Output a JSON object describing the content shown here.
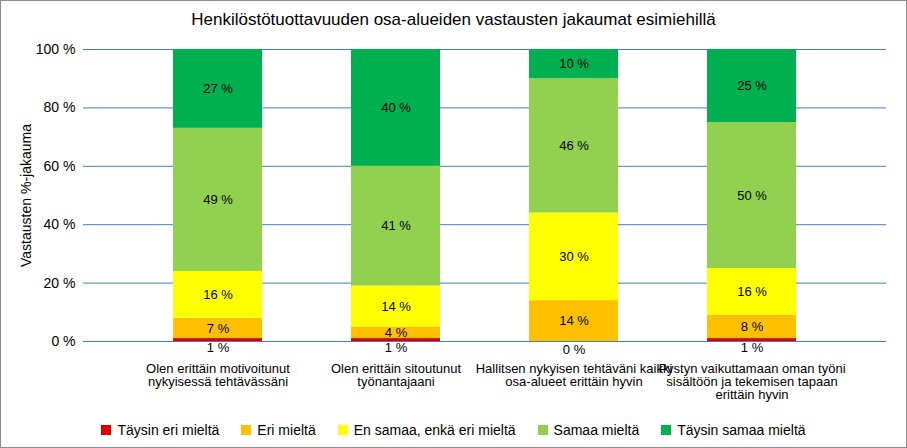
{
  "chart_data": {
    "type": "bar",
    "title": "Henkilöstötuottavuuden osa-alueiden vastausten jakaumat esimiehillä",
    "ylabel": "Vastausten %-jakauma",
    "categories": [
      "Olen erittäin motivoitunut nykyisessä tehtävässäni",
      "Olen erittäin sitoutunut työnantajaani",
      "Hallitsen nykyisen tehtäväni kaikki osa-alueet erittäin hyvin",
      "Pystyn vaikuttamaan oman työni sisältöön ja tekemisen tapaan erittäin hyvin"
    ],
    "series": [
      {
        "name": "Täysin eri mieltä",
        "color": "#e00000",
        "values": [
          1,
          1,
          0,
          1
        ],
        "value_labels": [
          "1 %",
          "1 %",
          "0 %",
          "1 %"
        ]
      },
      {
        "name": "Eri mieltä",
        "color": "#ffc000",
        "values": [
          7,
          4,
          14,
          8
        ],
        "value_labels": [
          "7 %",
          "4 %",
          "14 %",
          "8 %"
        ]
      },
      {
        "name": "En samaa, enkä eri mieltä",
        "color": "#ffff00",
        "values": [
          16,
          14,
          30,
          16
        ],
        "value_labels": [
          "16 %",
          "14 %",
          "30 %",
          "16 %"
        ]
      },
      {
        "name": "Samaa mieltä",
        "color": "#92d050",
        "values": [
          49,
          41,
          46,
          50
        ],
        "value_labels": [
          "49 %",
          "41 %",
          "46 %",
          "50 %"
        ]
      },
      {
        "name": "Täysin samaa mieltä",
        "color": "#00b050",
        "values": [
          27,
          40,
          10,
          25
        ],
        "value_labels": [
          "27 %",
          "40 %",
          "10 %",
          "25 %"
        ]
      }
    ],
    "ylim": [
      0,
      100
    ],
    "yticks": [
      {
        "value": 0,
        "label": "0 %"
      },
      {
        "value": 20,
        "label": "20 %"
      },
      {
        "value": 40,
        "label": "40 %"
      },
      {
        "value": 60,
        "label": "60 %"
      },
      {
        "value": 80,
        "label": "80 %"
      },
      {
        "value": 100,
        "label": "100 %"
      }
    ],
    "grid": true,
    "stacked": true,
    "data_labels": true,
    "legend": "bottom"
  }
}
